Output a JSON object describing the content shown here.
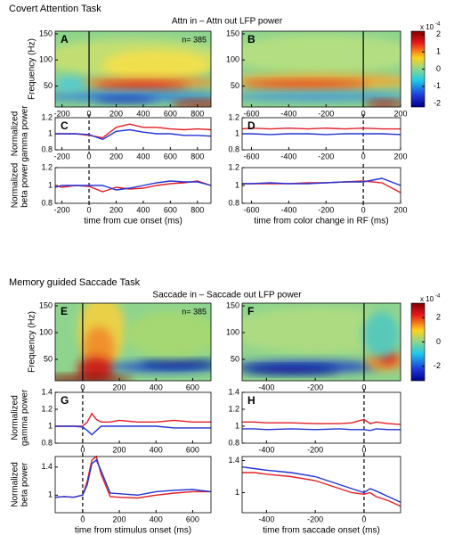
{
  "sections": [
    {
      "title": "Covert Attention Task",
      "subtitle": "Attn in – Attn out LFP power"
    },
    {
      "title": "Memory guided Saccade Task",
      "subtitle": "Saccade in – Saccade out LFP power"
    }
  ],
  "chart_data": [
    {
      "type": "heatmap",
      "label": "A",
      "annotation": "n= 385",
      "ylabel": [
        "Frequency (Hz)"
      ],
      "xlim": [
        -250,
        900
      ],
      "ylim": [
        10,
        155
      ],
      "xticks": [
        -200,
        0,
        200,
        400,
        600,
        800
      ],
      "yticks": [
        50,
        100,
        150
      ],
      "vline": {
        "x": 0,
        "style": "solid"
      }
    },
    {
      "type": "heatmap",
      "label": "B",
      "xlim": [
        -650,
        200
      ],
      "ylim": [
        10,
        155
      ],
      "xticks": [
        -600,
        -400,
        -200,
        0,
        200
      ],
      "yticks": [
        50,
        100,
        150
      ],
      "vline": {
        "x": 0,
        "style": "solid"
      },
      "colorbar": {
        "ylim": [
          -2.2,
          2.2
        ],
        "ticks": [
          -2,
          -1,
          0,
          1,
          2
        ],
        "label": "x 10",
        "exponent": "-4"
      }
    },
    {
      "type": "line",
      "label": "C",
      "ylabel": [
        "Normalized",
        "gamma power"
      ],
      "xlim": [
        -250,
        900
      ],
      "ylim": [
        0.8,
        1.2
      ],
      "xticks": [
        -200,
        0,
        200,
        400,
        600,
        800
      ],
      "yticks": [
        0.8,
        1,
        1.2
      ],
      "vline": {
        "x": 0,
        "style": "dashed"
      },
      "x": [
        -250,
        -200,
        -100,
        0,
        100,
        200,
        300,
        400,
        500,
        600,
        700,
        800,
        900
      ],
      "series": [
        {
          "color": "#e41e26",
          "values": [
            1.0,
            1.0,
            1.0,
            0.98,
            0.95,
            1.08,
            1.12,
            1.08,
            1.08,
            1.06,
            1.05,
            1.06,
            1.05
          ]
        },
        {
          "color": "#2233d6",
          "values": [
            1.0,
            1.0,
            1.0,
            0.99,
            0.93,
            1.03,
            1.05,
            1.02,
            1.0,
            1.0,
            0.98,
            0.98,
            0.97
          ]
        }
      ]
    },
    {
      "type": "line",
      "ylabel": [
        "Normalized",
        "beta power"
      ],
      "xlabel": "time from cue onset (ms)",
      "xlim": [
        -250,
        900
      ],
      "ylim": [
        0.8,
        1.2
      ],
      "xticks": [
        -200,
        0,
        200,
        400,
        600,
        800
      ],
      "yticks": [
        0.8,
        1,
        1.2
      ],
      "vline": {
        "x": 0,
        "style": "dashed"
      },
      "x": [
        -250,
        -200,
        -100,
        0,
        100,
        200,
        300,
        400,
        500,
        600,
        700,
        800,
        900
      ],
      "series": [
        {
          "color": "#e41e26",
          "values": [
            1.0,
            0.98,
            1.0,
            0.99,
            0.93,
            0.98,
            0.96,
            0.97,
            1.0,
            1.02,
            1.03,
            1.05,
            1.0
          ]
        },
        {
          "color": "#2233d6",
          "values": [
            0.98,
            1.0,
            1.0,
            1.0,
            1.0,
            0.95,
            0.97,
            1.0,
            1.03,
            1.05,
            1.04,
            1.04,
            1.0
          ]
        }
      ]
    },
    {
      "type": "line",
      "label": "D",
      "xlim": [
        -650,
        200
      ],
      "ylim": [
        0.8,
        1.2
      ],
      "xticks": [
        -600,
        -400,
        -200,
        0,
        200
      ],
      "yticks": [
        0.8,
        1,
        1.2
      ],
      "vline": {
        "x": 0,
        "style": "dashed"
      },
      "x": [
        -650,
        -600,
        -500,
        -400,
        -300,
        -200,
        -100,
        0,
        100,
        200
      ],
      "series": [
        {
          "color": "#e41e26",
          "values": [
            1.06,
            1.07,
            1.06,
            1.07,
            1.06,
            1.07,
            1.06,
            1.07,
            1.06,
            1.06
          ]
        },
        {
          "color": "#2233d6",
          "values": [
            1.0,
            1.0,
            0.99,
            1.0,
            1.0,
            0.99,
            1.0,
            1.0,
            1.0,
            0.99
          ]
        }
      ]
    },
    {
      "type": "line",
      "xlabel": "time from color change in RF (ms)",
      "xlim": [
        -650,
        200
      ],
      "ylim": [
        0.8,
        1.2
      ],
      "xticks": [
        -600,
        -400,
        -200,
        0,
        200
      ],
      "yticks": [
        0.8,
        1,
        1.2
      ],
      "vline": {
        "x": 0,
        "style": "dashed"
      },
      "x": [
        -650,
        -600,
        -500,
        -400,
        -300,
        -200,
        -100,
        0,
        100,
        200
      ],
      "series": [
        {
          "color": "#e41e26",
          "values": [
            1.02,
            1.02,
            1.02,
            1.02,
            1.03,
            1.03,
            1.04,
            1.05,
            1.03,
            0.92
          ]
        },
        {
          "color": "#2233d6",
          "values": [
            1.02,
            1.02,
            1.03,
            1.02,
            1.02,
            1.03,
            1.04,
            1.04,
            1.08,
            1.0
          ]
        }
      ]
    },
    {
      "type": "heatmap",
      "label": "E",
      "annotation": "n= 385",
      "ylabel": [
        "Frequency (Hz)"
      ],
      "xlim": [
        -150,
        700
      ],
      "ylim": [
        10,
        155
      ],
      "xticks": [
        0,
        200,
        400,
        600
      ],
      "yticks": [
        50,
        100,
        150
      ],
      "vline": {
        "x": 0,
        "style": "solid"
      }
    },
    {
      "type": "heatmap",
      "label": "F",
      "xlim": [
        -500,
        150
      ],
      "ylim": [
        10,
        155
      ],
      "xticks": [
        -400,
        -200,
        0
      ],
      "yticks": [
        50,
        100,
        150
      ],
      "vline": {
        "x": 0,
        "style": "solid"
      },
      "colorbar": {
        "ylim": [
          -3.2,
          3.2
        ],
        "ticks": [
          -2,
          0,
          2
        ],
        "label": "x 10",
        "exponent": "-4"
      }
    },
    {
      "type": "line",
      "label": "G",
      "ylabel": [
        "Normalized",
        "gamma power"
      ],
      "xlim": [
        -150,
        700
      ],
      "ylim": [
        0.8,
        1.4
      ],
      "xticks": [
        0,
        200,
        400,
        600
      ],
      "yticks": [
        0.8,
        1,
        1.2,
        1.4
      ],
      "vline": {
        "x": 0,
        "style": "dashed"
      },
      "x": [
        -150,
        -100,
        -50,
        0,
        25,
        50,
        75,
        100,
        150,
        200,
        300,
        400,
        500,
        600,
        700
      ],
      "series": [
        {
          "color": "#e41e26",
          "values": [
            1.0,
            1.0,
            1.0,
            1.0,
            1.05,
            1.15,
            1.08,
            1.05,
            1.05,
            1.07,
            1.05,
            1.05,
            1.07,
            1.05,
            1.05
          ]
        },
        {
          "color": "#2233d6",
          "values": [
            1.0,
            1.0,
            1.0,
            0.99,
            0.95,
            0.9,
            0.95,
            1.0,
            1.0,
            1.0,
            1.0,
            1.0,
            0.98,
            0.98,
            0.98
          ]
        }
      ]
    },
    {
      "type": "line",
      "ylabel": [
        "Normalized",
        "beta power"
      ],
      "xlabel": "time from stimulus onset (ms)",
      "xlim": [
        -150,
        700
      ],
      "ylim": [
        0.75,
        1.55
      ],
      "xticks": [
        0,
        200,
        400,
        600
      ],
      "yticks": [
        1,
        1.4
      ],
      "vline": {
        "x": 0,
        "style": "dashed"
      },
      "x": [
        -150,
        -100,
        -50,
        0,
        25,
        50,
        75,
        100,
        150,
        200,
        300,
        400,
        500,
        600,
        700
      ],
      "series": [
        {
          "color": "#e41e26",
          "values": [
            0.97,
            0.98,
            0.97,
            1.0,
            1.2,
            1.5,
            1.55,
            1.3,
            0.98,
            0.97,
            0.96,
            1.0,
            1.03,
            1.05,
            1.05
          ]
        },
        {
          "color": "#2233d6",
          "values": [
            0.97,
            0.98,
            0.97,
            1.0,
            1.15,
            1.45,
            1.5,
            1.35,
            1.03,
            1.02,
            1.0,
            1.05,
            1.07,
            1.08,
            1.05
          ]
        }
      ]
    },
    {
      "type": "line",
      "label": "H",
      "xlim": [
        -500,
        150
      ],
      "ylim": [
        0.8,
        1.4
      ],
      "xticks": [
        -400,
        -200,
        0
      ],
      "yticks": [
        0.8,
        1,
        1.2,
        1.4
      ],
      "vline": {
        "x": 0,
        "style": "dashed"
      },
      "x": [
        -500,
        -450,
        -400,
        -300,
        -200,
        -100,
        -50,
        0,
        25,
        50,
        100,
        150
      ],
      "series": [
        {
          "color": "#e41e26",
          "values": [
            1.05,
            1.05,
            1.04,
            1.04,
            1.03,
            1.03,
            1.04,
            1.08,
            1.03,
            1.05,
            1.03,
            1.02
          ]
        },
        {
          "color": "#2233d6",
          "values": [
            0.97,
            0.97,
            0.96,
            0.97,
            0.96,
            0.97,
            0.96,
            0.96,
            0.95,
            0.97,
            0.96,
            0.96
          ]
        }
      ]
    },
    {
      "type": "line",
      "xlabel": "time from saccade onset (ms)",
      "xlim": [
        -500,
        150
      ],
      "ylim": [
        0.75,
        1.45
      ],
      "xticks": [
        -400,
        -200,
        0
      ],
      "yticks": [
        1,
        1.4
      ],
      "vline": {
        "x": 0,
        "style": "dashed"
      },
      "x": [
        -500,
        -450,
        -400,
        -300,
        -200,
        -100,
        -50,
        0,
        25,
        50,
        100,
        150
      ],
      "series": [
        {
          "color": "#e41e26",
          "values": [
            1.25,
            1.25,
            1.23,
            1.2,
            1.15,
            1.05,
            1.0,
            0.98,
            1.0,
            0.95,
            0.9,
            0.83
          ]
        },
        {
          "color": "#2233d6",
          "values": [
            1.32,
            1.3,
            1.28,
            1.25,
            1.2,
            1.1,
            1.05,
            1.0,
            1.05,
            1.02,
            0.95,
            0.88
          ]
        }
      ]
    }
  ]
}
